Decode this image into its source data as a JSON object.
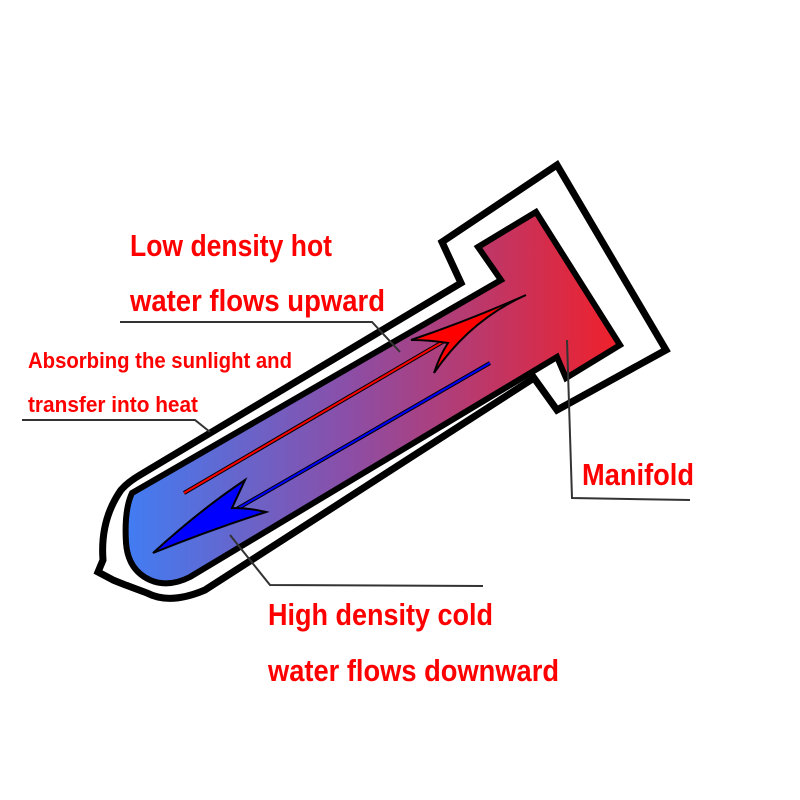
{
  "labels": {
    "hot_line1": "Low density hot",
    "hot_line2": "water flows upward",
    "absorb_line1": "Absorbing the sunlight and",
    "absorb_line2": "transfer into heat",
    "manifold": "Manifold",
    "cold_line1": "High density cold",
    "cold_line2": "water flows downward"
  },
  "colors": {
    "label": "#ff0000",
    "hot": "#f0202a",
    "cold": "#3f7ef5",
    "hot_arrow": "#ff0000",
    "cold_arrow": "#0000ff",
    "outline": "#000000"
  }
}
